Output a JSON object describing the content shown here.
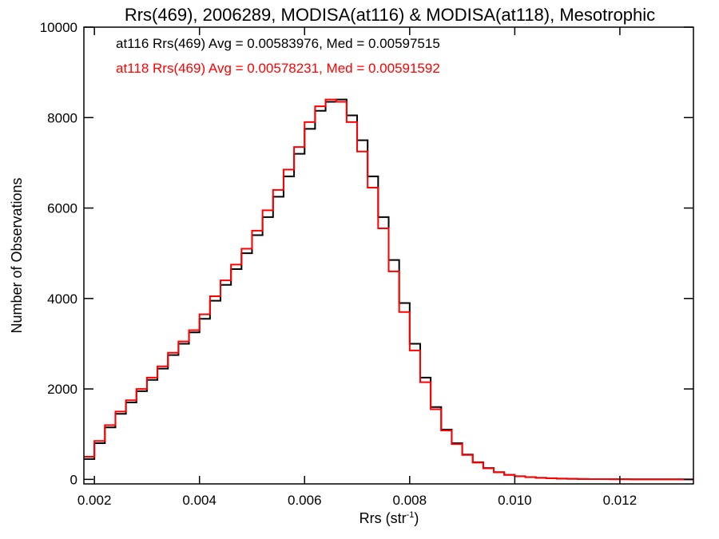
{
  "chart_data": {
    "type": "line",
    "title": "Rrs(469), 2006289, MODISA(at116) & MODISA(at118), Mesotrophic",
    "xlabel": "Rrs (str",
    "xlabel_sup": "-1",
    "xlabel_end": ")",
    "ylabel": "Number of Observations",
    "xlim": [
      0.0018,
      0.0134
    ],
    "ylim": [
      -100,
      10000
    ],
    "x_ticks": [
      0.002,
      0.004,
      0.006,
      0.008,
      0.01,
      0.012
    ],
    "x_tick_labels": [
      "0.002",
      "0.004",
      "0.006",
      "0.008",
      "0.010",
      "0.012"
    ],
    "y_ticks": [
      0,
      2000,
      4000,
      6000,
      8000,
      10000
    ],
    "y_tick_labels": [
      "0",
      "2000",
      "4000",
      "6000",
      "8000",
      "10000"
    ],
    "grid": false,
    "step": true,
    "legend_position": "top-left",
    "series": [
      {
        "name": "at116",
        "legend_text": "at116 Rrs(469) Avg = 0.00583976, Med = 0.00597515",
        "color": "#000000",
        "x": [
          0.0018,
          0.002,
          0.0022,
          0.0024,
          0.0026,
          0.0028,
          0.003,
          0.0032,
          0.0034,
          0.0036,
          0.0038,
          0.004,
          0.0042,
          0.0044,
          0.0046,
          0.0048,
          0.005,
          0.0052,
          0.0054,
          0.0056,
          0.0058,
          0.006,
          0.0062,
          0.0064,
          0.0066,
          0.0068,
          0.007,
          0.0072,
          0.0074,
          0.0076,
          0.0078,
          0.008,
          0.0082,
          0.0084,
          0.0086,
          0.0088,
          0.009,
          0.0092,
          0.0094,
          0.0096,
          0.0098,
          0.01,
          0.0102,
          0.0104,
          0.0106,
          0.0108,
          0.011,
          0.0112,
          0.0114,
          0.0116,
          0.0118,
          0.012,
          0.0122,
          0.0124,
          0.0126,
          0.0128,
          0.013,
          0.0132,
          0.0134
        ],
        "y": [
          450,
          800,
          1150,
          1450,
          1700,
          1950,
          2200,
          2450,
          2750,
          3000,
          3250,
          3550,
          3950,
          4300,
          4650,
          5000,
          5400,
          5800,
          6250,
          6700,
          7200,
          7750,
          8150,
          8350,
          8400,
          8050,
          7500,
          6700,
          5800,
          4850,
          3900,
          3000,
          2250,
          1600,
          1100,
          800,
          550,
          380,
          250,
          160,
          100,
          70,
          50,
          35,
          25,
          18,
          12,
          9,
          7,
          5,
          4,
          3,
          2,
          2,
          1,
          1,
          1,
          0,
          0
        ]
      },
      {
        "name": "at118",
        "legend_text": "at118 Rrs(469) Avg = 0.00578231, Med = 0.00591592",
        "color": "#ff0000",
        "x": [
          0.0018,
          0.002,
          0.0022,
          0.0024,
          0.0026,
          0.0028,
          0.003,
          0.0032,
          0.0034,
          0.0036,
          0.0038,
          0.004,
          0.0042,
          0.0044,
          0.0046,
          0.0048,
          0.005,
          0.0052,
          0.0054,
          0.0056,
          0.0058,
          0.006,
          0.0062,
          0.0064,
          0.0066,
          0.0068,
          0.007,
          0.0072,
          0.0074,
          0.0076,
          0.0078,
          0.008,
          0.0082,
          0.0084,
          0.0086,
          0.0088,
          0.009,
          0.0092,
          0.0094,
          0.0096,
          0.0098,
          0.01,
          0.0102,
          0.0104,
          0.0106,
          0.0108,
          0.011,
          0.0112,
          0.0114,
          0.0116,
          0.0118,
          0.012,
          0.0122,
          0.0124,
          0.0126,
          0.0128,
          0.013,
          0.0132,
          0.0134
        ],
        "y": [
          500,
          850,
          1200,
          1500,
          1750,
          2000,
          2250,
          2500,
          2800,
          3050,
          3300,
          3650,
          4050,
          4400,
          4750,
          5100,
          5500,
          5950,
          6400,
          6850,
          7350,
          7900,
          8250,
          8400,
          8350,
          7900,
          7250,
          6450,
          5550,
          4600,
          3700,
          2850,
          2150,
          1550,
          1080,
          780,
          540,
          370,
          245,
          155,
          98,
          68,
          48,
          34,
          24,
          17,
          12,
          9,
          6,
          5,
          4,
          3,
          2,
          2,
          1,
          1,
          1,
          0,
          0
        ]
      }
    ]
  }
}
